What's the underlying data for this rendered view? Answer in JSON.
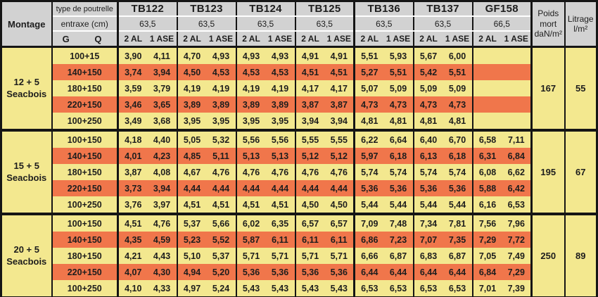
{
  "colors": {
    "stripe_yellow": "#f3e88f",
    "stripe_orange": "#f0764b",
    "header_gray": "#d2d2d2",
    "border_black": "#151515"
  },
  "table": {
    "header": {
      "montage_label": "Montage",
      "type_label": "type de poutrelle",
      "entraxe_label": "entraxe (cm)",
      "g_label": "G",
      "q_label": "Q",
      "sub_al": "2 AL",
      "sub_ase": "1 ASE",
      "beams": [
        {
          "name": "TB122",
          "entraxe": "63,5"
        },
        {
          "name": "TB123",
          "entraxe": "63,5"
        },
        {
          "name": "TB124",
          "entraxe": "63,5"
        },
        {
          "name": "TB125",
          "entraxe": "63,5"
        },
        {
          "name": "TB136",
          "entraxe": "63,5"
        },
        {
          "name": "TB137",
          "entraxe": "63,5"
        },
        {
          "name": "GF158",
          "entraxe": "66,5"
        }
      ],
      "poids_lines": [
        "Poids",
        "mort",
        "daN/m²"
      ],
      "litrage_lines": [
        "Litrage",
        "l/m²"
      ]
    },
    "sections": [
      {
        "montage_line1": "12 + 5",
        "montage_line2": "Seacbois",
        "poids_mort": "167",
        "litrage": "55",
        "rows": [
          {
            "label": "100+15",
            "values": [
              "3,90",
              "4,11",
              "4,70",
              "4,93",
              "4,93",
              "4,93",
              "4,91",
              "4,91",
              "5,51",
              "5,93",
              "5,67",
              "6,00",
              "",
              ""
            ]
          },
          {
            "label": "140+150",
            "values": [
              "3,74",
              "3,94",
              "4,50",
              "4,53",
              "4,53",
              "4,53",
              "4,51",
              "4,51",
              "5,27",
              "5,51",
              "5,42",
              "5,51",
              "",
              ""
            ]
          },
          {
            "label": "180+150",
            "values": [
              "3,59",
              "3,79",
              "4,19",
              "4,19",
              "4,19",
              "4,19",
              "4,17",
              "4,17",
              "5,07",
              "5,09",
              "5,09",
              "5,09",
              "",
              ""
            ]
          },
          {
            "label": "220+150",
            "values": [
              "3,46",
              "3,65",
              "3,89",
              "3,89",
              "3,89",
              "3,89",
              "3,87",
              "3,87",
              "4,73",
              "4,73",
              "4,73",
              "4,73",
              "",
              ""
            ]
          },
          {
            "label": "100+250",
            "values": [
              "3,49",
              "3,68",
              "3,95",
              "3,95",
              "3,95",
              "3,95",
              "3,94",
              "3,94",
              "4,81",
              "4,81",
              "4,81",
              "4,81",
              "",
              ""
            ]
          }
        ]
      },
      {
        "montage_line1": "15 + 5",
        "montage_line2": "Seacbois",
        "poids_mort": "195",
        "litrage": "67",
        "rows": [
          {
            "label": "100+150",
            "values": [
              "4,18",
              "4,40",
              "5,05",
              "5,32",
              "5,56",
              "5,56",
              "5,55",
              "5,55",
              "6,22",
              "6,64",
              "6,40",
              "6,70",
              "6,58",
              "7,11"
            ]
          },
          {
            "label": "140+150",
            "values": [
              "4,01",
              "4,23",
              "4,85",
              "5,11",
              "5,13",
              "5,13",
              "5,12",
              "5,12",
              "5,97",
              "6,18",
              "6,13",
              "6,18",
              "6,31",
              "6,84"
            ]
          },
          {
            "label": "180+150",
            "values": [
              "3,87",
              "4,08",
              "4,67",
              "4,76",
              "4,76",
              "4,76",
              "4,76",
              "4,76",
              "5,74",
              "5,74",
              "5,74",
              "5,74",
              "6,08",
              "6,62"
            ]
          },
          {
            "label": "220+150",
            "values": [
              "3,73",
              "3,94",
              "4,44",
              "4,44",
              "4,44",
              "4,44",
              "4,44",
              "4,44",
              "5,36",
              "5,36",
              "5,36",
              "5,36",
              "5,88",
              "6,42"
            ]
          },
          {
            "label": "100+250",
            "values": [
              "3,76",
              "3,97",
              "4,51",
              "4,51",
              "4,51",
              "4,51",
              "4,50",
              "4,50",
              "5,44",
              "5,44",
              "5,44",
              "5,44",
              "6,16",
              "6,53"
            ]
          }
        ]
      },
      {
        "montage_line1": "20 + 5",
        "montage_line2": "Seacbois",
        "poids_mort": "250",
        "litrage": "89",
        "rows": [
          {
            "label": "100+150",
            "values": [
              "4,51",
              "4,76",
              "5,37",
              "5,66",
              "6,02",
              "6,35",
              "6,57",
              "6,57",
              "7,09",
              "7,48",
              "7,34",
              "7,81",
              "7,56",
              "7,96"
            ]
          },
          {
            "label": "140+150",
            "values": [
              "4,35",
              "4,59",
              "5,23",
              "5,52",
              "5,87",
              "6,11",
              "6,11",
              "6,11",
              "6,86",
              "7,23",
              "7,07",
              "7,35",
              "7,29",
              "7,72"
            ]
          },
          {
            "label": "180+150",
            "values": [
              "4,21",
              "4,43",
              "5,10",
              "5,37",
              "5,71",
              "5,71",
              "5,71",
              "5,71",
              "6,66",
              "6,87",
              "6,83",
              "6,87",
              "7,05",
              "7,49"
            ]
          },
          {
            "label": "220+150",
            "values": [
              "4,07",
              "4,30",
              "4,94",
              "5,20",
              "5,36",
              "5,36",
              "5,36",
              "5,36",
              "6,44",
              "6,44",
              "6,44",
              "6,44",
              "6,84",
              "7,29"
            ]
          },
          {
            "label": "100+250",
            "values": [
              "4,10",
              "4,33",
              "4,97",
              "5,24",
              "5,43",
              "5,43",
              "5,43",
              "5,43",
              "6,53",
              "6,53",
              "6,53",
              "6,53",
              "7,01",
              "7,39"
            ]
          }
        ]
      }
    ]
  }
}
